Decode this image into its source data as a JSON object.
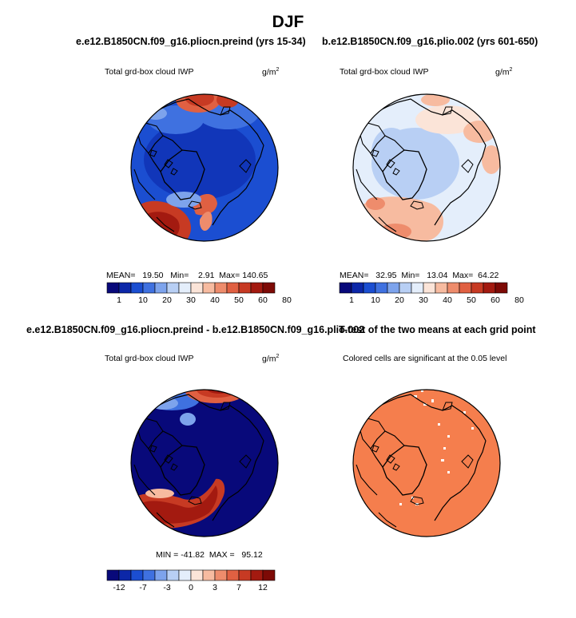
{
  "figure": {
    "title": "DJF",
    "panels": [
      {
        "title": "e.e12.B1850CN.f09_g16.pliocn.preind (yrs 15-34)",
        "left_label": "Total grd-box cloud IWP",
        "units": "g/m",
        "units_sup": "2",
        "stats": {
          "mean_label": "MEAN=",
          "mean": "19.50",
          "min_label": "Min=",
          "min": "2.91",
          "max_label": "Max=",
          "max": "140.65"
        },
        "colorbar_ticks": [
          "1",
          "10",
          "20",
          "30",
          "40",
          "50",
          "60",
          "80"
        ]
      },
      {
        "title": "b.e12.B1850CN.f09_g16.plio.002 (yrs 601-650)",
        "left_label": "Total grd-box cloud IWP",
        "units": "g/m",
        "units_sup": "2",
        "stats": {
          "mean_label": "MEAN=",
          "mean": "32.95",
          "min_label": "Min=",
          "min": "13.04",
          "max_label": "Max=",
          "max": "64.22"
        },
        "colorbar_ticks": [
          "1",
          "10",
          "20",
          "30",
          "40",
          "50",
          "60",
          "80"
        ]
      },
      {
        "title": "e.e12.B1850CN.f09_g16.pliocn.preind - b.e12.B1850CN.f09_g16.plio.002",
        "left_label": "Total grd-box cloud IWP",
        "units": "g/m",
        "units_sup": "2",
        "stats": {
          "min_label": "MIN =",
          "min": "-41.82",
          "max_label": "MAX =",
          "max": "95.12"
        },
        "colorbar_ticks": [
          "-12",
          "-7",
          "-3",
          "0",
          "3",
          "7",
          "12"
        ]
      },
      {
        "title": "T-test of the two means at each grid point",
        "subtitle": "Colored cells are significant at the 0.05 level"
      }
    ],
    "colors": {
      "abs_scale": [
        "#08097a",
        "#0c27a8",
        "#1b4ed1",
        "#3f71e0",
        "#7da3ec",
        "#b8cff4",
        "#e4eefb",
        "#fbe4d8",
        "#f7bba0",
        "#ee8c6c",
        "#e06042",
        "#c73a23",
        "#a31a10",
        "#7d0a06"
      ],
      "diff_scale": [
        "#08097a",
        "#0c27a8",
        "#1b4ed1",
        "#3f71e0",
        "#7da3ec",
        "#b8cff4",
        "#e4eefb",
        "#fbe4d8",
        "#f7bba0",
        "#ee8c6c",
        "#e06042",
        "#c73a23",
        "#a31a10",
        "#7d0a06"
      ],
      "significance": "#f57e4d"
    }
  }
}
